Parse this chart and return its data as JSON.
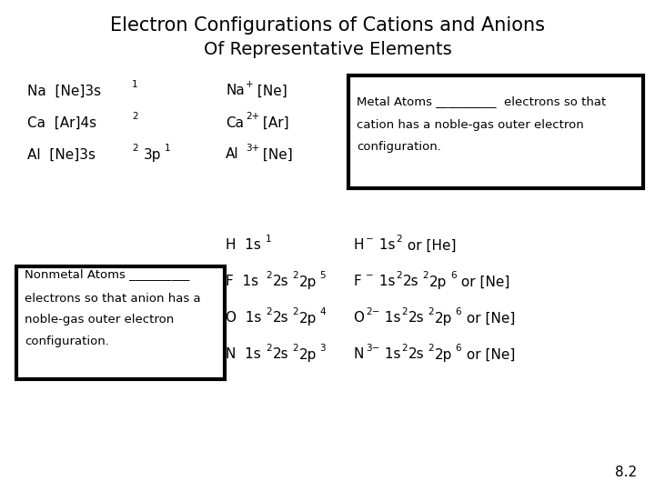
{
  "bg": "#ffffff",
  "title1": "Electron Configurations of Cations and Anions",
  "title2": "Of Representative Elements",
  "page_num": "8.2"
}
